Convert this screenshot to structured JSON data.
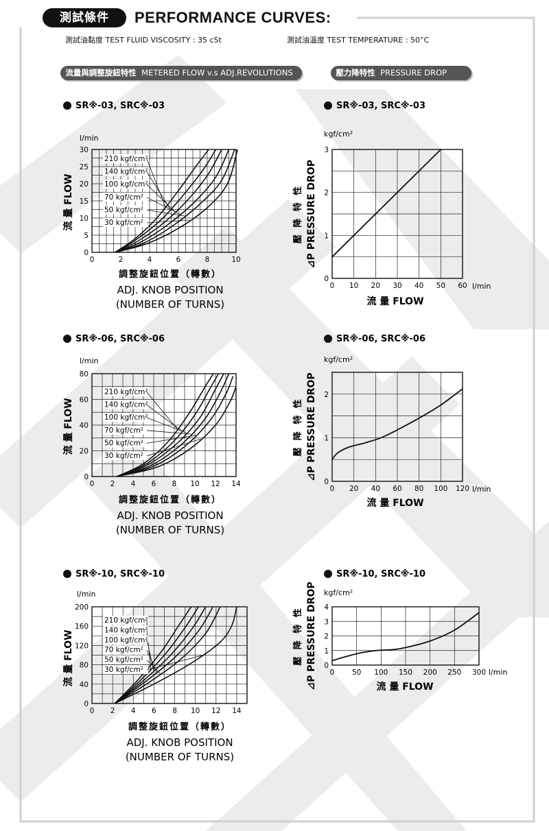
{
  "header": {
    "title_cn": "測試條件",
    "title_en": "PERFORMANCE CURVES:",
    "viscosity": "測試油黏度  TEST FLUID VISCOSITY : 35 cSt",
    "temperature": "測試油溫度  TEST TEMPERATURE : 50°C"
  },
  "sections": {
    "left_cn": "流量與調整旋鈕特性",
    "left_en": "METERED FLOW v.s ADJ.REVOLUTIONS",
    "right_cn": "壓力降特性",
    "right_en": "PRESSURE DROP"
  },
  "chart_data": [
    {
      "type": "line",
      "title": "SR※-03, SRC※-03",
      "unit": "l/min",
      "ylabel": "流 量 FLOW",
      "xlabel_cn": "調整旋鈕位置（轉數）",
      "xlabel_en1": "ADJ. KNOB POSITION",
      "xlabel_en2": "(NUMBER OF TURNS)",
      "xlim": [
        0,
        10
      ],
      "ylim": [
        0,
        30
      ],
      "xticks": [
        "0",
        "2",
        "4",
        "6",
        "8",
        "10"
      ],
      "yticks": [
        "0",
        "5",
        "10",
        "15",
        "20",
        "25",
        "30"
      ],
      "grid": true,
      "series": [
        {
          "name": "210 kgf/cm²",
          "x": [
            1.6,
            3,
            4.5,
            6,
            7.2,
            8.1
          ],
          "y": [
            0,
            4,
            10,
            18,
            25,
            30
          ]
        },
        {
          "name": "140 kgf/cm²",
          "x": [
            1.6,
            3,
            4.8,
            6.4,
            7.7,
            8.6
          ],
          "y": [
            0,
            3.5,
            9.5,
            17,
            24,
            30
          ]
        },
        {
          "name": "100 kgf/cm²",
          "x": [
            1.6,
            3.2,
            5.1,
            6.8,
            8.1,
            9.0
          ],
          "y": [
            0,
            3.3,
            9,
            16,
            23,
            30
          ]
        },
        {
          "name": "70 kgf/cm²",
          "x": [
            1.6,
            3.4,
            5.4,
            7.2,
            8.6,
            9.5
          ],
          "y": [
            0,
            3,
            8.5,
            15,
            22,
            30
          ]
        },
        {
          "name": "50 kgf/cm²",
          "x": [
            1.6,
            3.6,
            5.7,
            7.6,
            9.0,
            9.9
          ],
          "y": [
            0,
            2.7,
            8,
            14.5,
            21,
            30
          ]
        },
        {
          "name": "30 kgf/cm²",
          "x": [
            1.6,
            3.8,
            6.0,
            8.0,
            9.4,
            10.1
          ],
          "y": [
            0,
            2.5,
            7,
            13,
            20,
            30
          ]
        }
      ]
    },
    {
      "type": "line",
      "title": "SR※-03, SRC※-03",
      "unit_y": "kgf/cm²",
      "unit_x": "l/min",
      "ylabel_cn": "壓 降 特 性",
      "ylabel_en": "⊿P PRESSURE DROP",
      "xlabel": "流  量 FLOW",
      "xlim": [
        0,
        60
      ],
      "ylim": [
        0,
        3
      ],
      "xticks": [
        "0",
        "10",
        "20",
        "30",
        "40",
        "50",
        "60"
      ],
      "yticks": [
        "0",
        "1",
        "2",
        "3"
      ],
      "grid": true,
      "series": [
        {
          "x": [
            0,
            50
          ],
          "y": [
            0.5,
            3
          ]
        }
      ]
    },
    {
      "type": "line",
      "title": "SR※-06, SRC※-06",
      "unit": "l/min",
      "ylabel": "流 量 FLOW",
      "xlabel_cn": "調整旋鈕位置（轉數）",
      "xlabel_en1": "ADJ. KNOB POSITION",
      "xlabel_en2": "(NUMBER OF TURNS)",
      "xlim": [
        0,
        14
      ],
      "ylim": [
        0,
        80
      ],
      "xticks": [
        "0",
        "2",
        "4",
        "6",
        "8",
        "10",
        "12",
        "14"
      ],
      "yticks": [
        "0",
        "20",
        "40",
        "60",
        "80"
      ],
      "grid": true,
      "series": [
        {
          "name": "210 kgf/cm²",
          "x": [
            2.4,
            5,
            7.5,
            9.5,
            11,
            11.8
          ],
          "y": [
            0,
            10,
            28,
            50,
            70,
            80
          ]
        },
        {
          "name": "140 kgf/cm²",
          "x": [
            2.4,
            5.2,
            7.9,
            10,
            11.5,
            12.3
          ],
          "y": [
            0,
            9.5,
            27,
            48,
            69,
            80
          ]
        },
        {
          "name": "100 kgf/cm²",
          "x": [
            2.4,
            5.4,
            8.3,
            10.5,
            12,
            12.8
          ],
          "y": [
            0,
            9,
            26,
            46,
            68,
            80
          ]
        },
        {
          "name": "70 kgf/cm²",
          "x": [
            2.4,
            5.7,
            8.7,
            11,
            12.5,
            13.3
          ],
          "y": [
            0,
            8.5,
            25,
            45,
            66,
            80
          ]
        },
        {
          "name": "50 kgf/cm²",
          "x": [
            2.4,
            6.0,
            9.1,
            11.5,
            13.0,
            13.7
          ],
          "y": [
            0,
            8,
            24,
            44,
            64,
            78
          ]
        },
        {
          "name": "30 kgf/cm²",
          "x": [
            2.4,
            6.4,
            9.6,
            12.0,
            13.4,
            14.0
          ],
          "y": [
            0,
            7.5,
            22,
            40,
            58,
            70
          ]
        }
      ]
    },
    {
      "type": "line",
      "title": "SR※-06, SRC※-06",
      "unit_y": "kgf/cm²",
      "unit_x": "l/min",
      "ylabel_cn": "壓 降 特 性",
      "ylabel_en": "⊿P PRESSURE DROP",
      "xlabel": "流  量 FLOW",
      "xlim": [
        0,
        120
      ],
      "ylim": [
        0,
        2.5
      ],
      "xticks": [
        "0",
        "20",
        "40",
        "60",
        "80",
        "100",
        "120"
      ],
      "yticks": [
        "0",
        "1",
        "2"
      ],
      "grid": true,
      "series": [
        {
          "x": [
            0,
            5,
            15,
            30,
            45,
            60,
            80,
            100,
            120
          ],
          "y": [
            0.5,
            0.65,
            0.78,
            0.88,
            1.0,
            1.18,
            1.45,
            1.75,
            2.12
          ]
        }
      ]
    },
    {
      "type": "line",
      "title": "SR※-10, SRC※-10",
      "unit": "l/min",
      "ylabel": "流 量 FLOW",
      "xlabel_cn": "調整旋鈕位置（轉數）",
      "xlabel_en1": "ADJ. KNOB POSITION",
      "xlabel_en2": "(NUMBER OF TURNS)",
      "xlim": [
        0,
        15
      ],
      "ylim": [
        0,
        200
      ],
      "xticks": [
        "0",
        "2",
        "4",
        "6",
        "8",
        "10",
        "12",
        "14"
      ],
      "yticks": [
        "0",
        "40",
        "80",
        "120",
        "160",
        "200"
      ],
      "grid": true,
      "series": [
        {
          "name": "210 kgf/cm²",
          "x": [
            2.2,
            4.5,
            6.8,
            8.5,
            9.6
          ],
          "y": [
            0,
            50,
            110,
            165,
            200
          ]
        },
        {
          "name": "140 kgf/cm²",
          "x": [
            2.2,
            4.7,
            7.2,
            9.1,
            10.3
          ],
          "y": [
            0,
            48,
            105,
            160,
            200
          ]
        },
        {
          "name": "100 kgf/cm²",
          "x": [
            2.2,
            4.9,
            7.6,
            9.7,
            11.0
          ],
          "y": [
            0,
            46,
            100,
            155,
            200
          ]
        },
        {
          "name": "70 kgf/cm²",
          "x": [
            2.2,
            5.1,
            8.0,
            10.3,
            11.7
          ],
          "y": [
            0,
            44,
            95,
            150,
            200
          ]
        },
        {
          "name": "50 kgf/cm²",
          "x": [
            2.2,
            5.4,
            8.5,
            11.0,
            12.4
          ],
          "y": [
            0,
            42,
            90,
            145,
            200
          ]
        },
        {
          "name": "30 kgf/cm²",
          "x": [
            2.2,
            5.8,
            9.5,
            12.3,
            13.5,
            14.0
          ],
          "y": [
            0,
            38,
            82,
            125,
            160,
            200
          ]
        }
      ]
    },
    {
      "type": "line",
      "title": "SR※-10, SRC※-10",
      "unit_y": "kgf/cm²",
      "unit_x": "l/min",
      "ylabel_cn": "壓 降 特 性",
      "ylabel_en": "⊿P PRESSURE DROP",
      "xlabel": "流  量 FLOW",
      "xlim": [
        0,
        300
      ],
      "ylim": [
        0,
        4
      ],
      "xticks": [
        "0",
        "50",
        "100",
        "150",
        "200",
        "250",
        "300"
      ],
      "yticks": [
        "0",
        "1",
        "2",
        "3",
        "4"
      ],
      "grid": true,
      "series": [
        {
          "x": [
            0,
            30,
            60,
            90,
            120,
            150,
            200,
            250,
            300
          ],
          "y": [
            0.3,
            0.6,
            0.85,
            1.0,
            1.05,
            1.2,
            1.65,
            2.4,
            3.6
          ]
        }
      ]
    }
  ]
}
